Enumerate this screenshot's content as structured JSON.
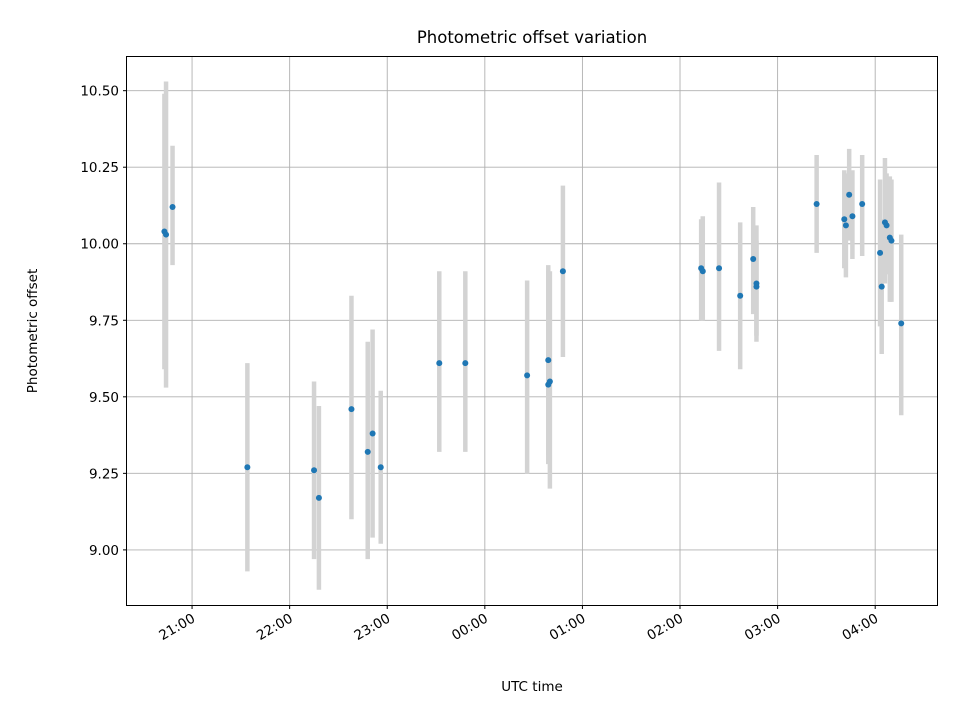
{
  "chart_data": {
    "type": "scatter",
    "title": "Photometric offset variation",
    "xlabel": "UTC time",
    "ylabel": "Photometric offset",
    "x_axis_kind": "time",
    "xlim": [
      "20:20",
      "04:38"
    ],
    "ylim": [
      8.82,
      10.61
    ],
    "xticks": [
      "21:00",
      "22:00",
      "23:00",
      "00:00",
      "01:00",
      "02:00",
      "03:00",
      "04:00"
    ],
    "yticks": [
      "9.00",
      "9.25",
      "9.50",
      "9.75",
      "10.00",
      "10.25",
      "10.50"
    ],
    "grid": true,
    "colors": {
      "points": "#1f77b4",
      "error_bars": "#d3d3d3"
    },
    "points": [
      {
        "t": "20:43",
        "y": 10.04,
        "lo": 9.59,
        "hi": 10.49
      },
      {
        "t": "20:44",
        "y": 10.03,
        "lo": 9.53,
        "hi": 10.53
      },
      {
        "t": "20:48",
        "y": 10.12,
        "lo": 9.93,
        "hi": 10.32
      },
      {
        "t": "21:34",
        "y": 9.27,
        "lo": 8.93,
        "hi": 9.61
      },
      {
        "t": "22:15",
        "y": 9.26,
        "lo": 8.97,
        "hi": 9.55
      },
      {
        "t": "22:18",
        "y": 9.17,
        "lo": 8.87,
        "hi": 9.47
      },
      {
        "t": "22:38",
        "y": 9.46,
        "lo": 9.1,
        "hi": 9.83
      },
      {
        "t": "22:48",
        "y": 9.32,
        "lo": 8.97,
        "hi": 9.68
      },
      {
        "t": "22:51",
        "y": 9.38,
        "lo": 9.04,
        "hi": 9.72
      },
      {
        "t": "22:56",
        "y": 9.27,
        "lo": 9.02,
        "hi": 9.52
      },
      {
        "t": "23:32",
        "y": 9.61,
        "lo": 9.32,
        "hi": 9.91
      },
      {
        "t": "23:48",
        "y": 9.61,
        "lo": 9.32,
        "hi": 9.91
      },
      {
        "t": "00:26",
        "y": 9.57,
        "lo": 9.25,
        "hi": 9.88
      },
      {
        "t": "00:39",
        "y": 9.62,
        "lo": 9.31,
        "hi": 9.93
      },
      {
        "t": "00:39",
        "y": 9.54,
        "lo": 9.28,
        "hi": 9.91
      },
      {
        "t": "00:40",
        "y": 9.55,
        "lo": 9.2,
        "hi": 9.91
      },
      {
        "t": "00:48",
        "y": 9.91,
        "lo": 9.63,
        "hi": 10.19
      },
      {
        "t": "02:13",
        "y": 9.92,
        "lo": 9.75,
        "hi": 10.08
      },
      {
        "t": "02:14",
        "y": 9.91,
        "lo": 9.75,
        "hi": 10.09
      },
      {
        "t": "02:24",
        "y": 9.92,
        "lo": 9.65,
        "hi": 10.2
      },
      {
        "t": "02:37",
        "y": 9.83,
        "lo": 9.59,
        "hi": 10.07
      },
      {
        "t": "02:45",
        "y": 9.95,
        "lo": 9.77,
        "hi": 10.12
      },
      {
        "t": "02:47",
        "y": 9.87,
        "lo": 9.68,
        "hi": 10.06
      },
      {
        "t": "02:47",
        "y": 9.86,
        "lo": 9.7,
        "hi": 10.01
      },
      {
        "t": "03:24",
        "y": 10.13,
        "lo": 9.97,
        "hi": 10.29
      },
      {
        "t": "03:41",
        "y": 10.08,
        "lo": 9.92,
        "hi": 10.24
      },
      {
        "t": "03:42",
        "y": 10.06,
        "lo": 9.89,
        "hi": 10.23
      },
      {
        "t": "03:44",
        "y": 10.16,
        "lo": 10.01,
        "hi": 10.31
      },
      {
        "t": "03:46",
        "y": 10.09,
        "lo": 9.95,
        "hi": 10.24
      },
      {
        "t": "03:52",
        "y": 10.13,
        "lo": 9.96,
        "hi": 10.29
      },
      {
        "t": "04:03",
        "y": 9.97,
        "lo": 9.73,
        "hi": 10.21
      },
      {
        "t": "04:04",
        "y": 9.86,
        "lo": 9.64,
        "hi": 10.08
      },
      {
        "t": "04:06",
        "y": 10.07,
        "lo": 9.87,
        "hi": 10.28
      },
      {
        "t": "04:07",
        "y": 10.06,
        "lo": 9.9,
        "hi": 10.23
      },
      {
        "t": "04:09",
        "y": 10.02,
        "lo": 9.81,
        "hi": 10.22
      },
      {
        "t": "04:10",
        "y": 10.01,
        "lo": 9.81,
        "hi": 10.21
      },
      {
        "t": "04:16",
        "y": 9.74,
        "lo": 9.44,
        "hi": 10.03
      }
    ]
  }
}
